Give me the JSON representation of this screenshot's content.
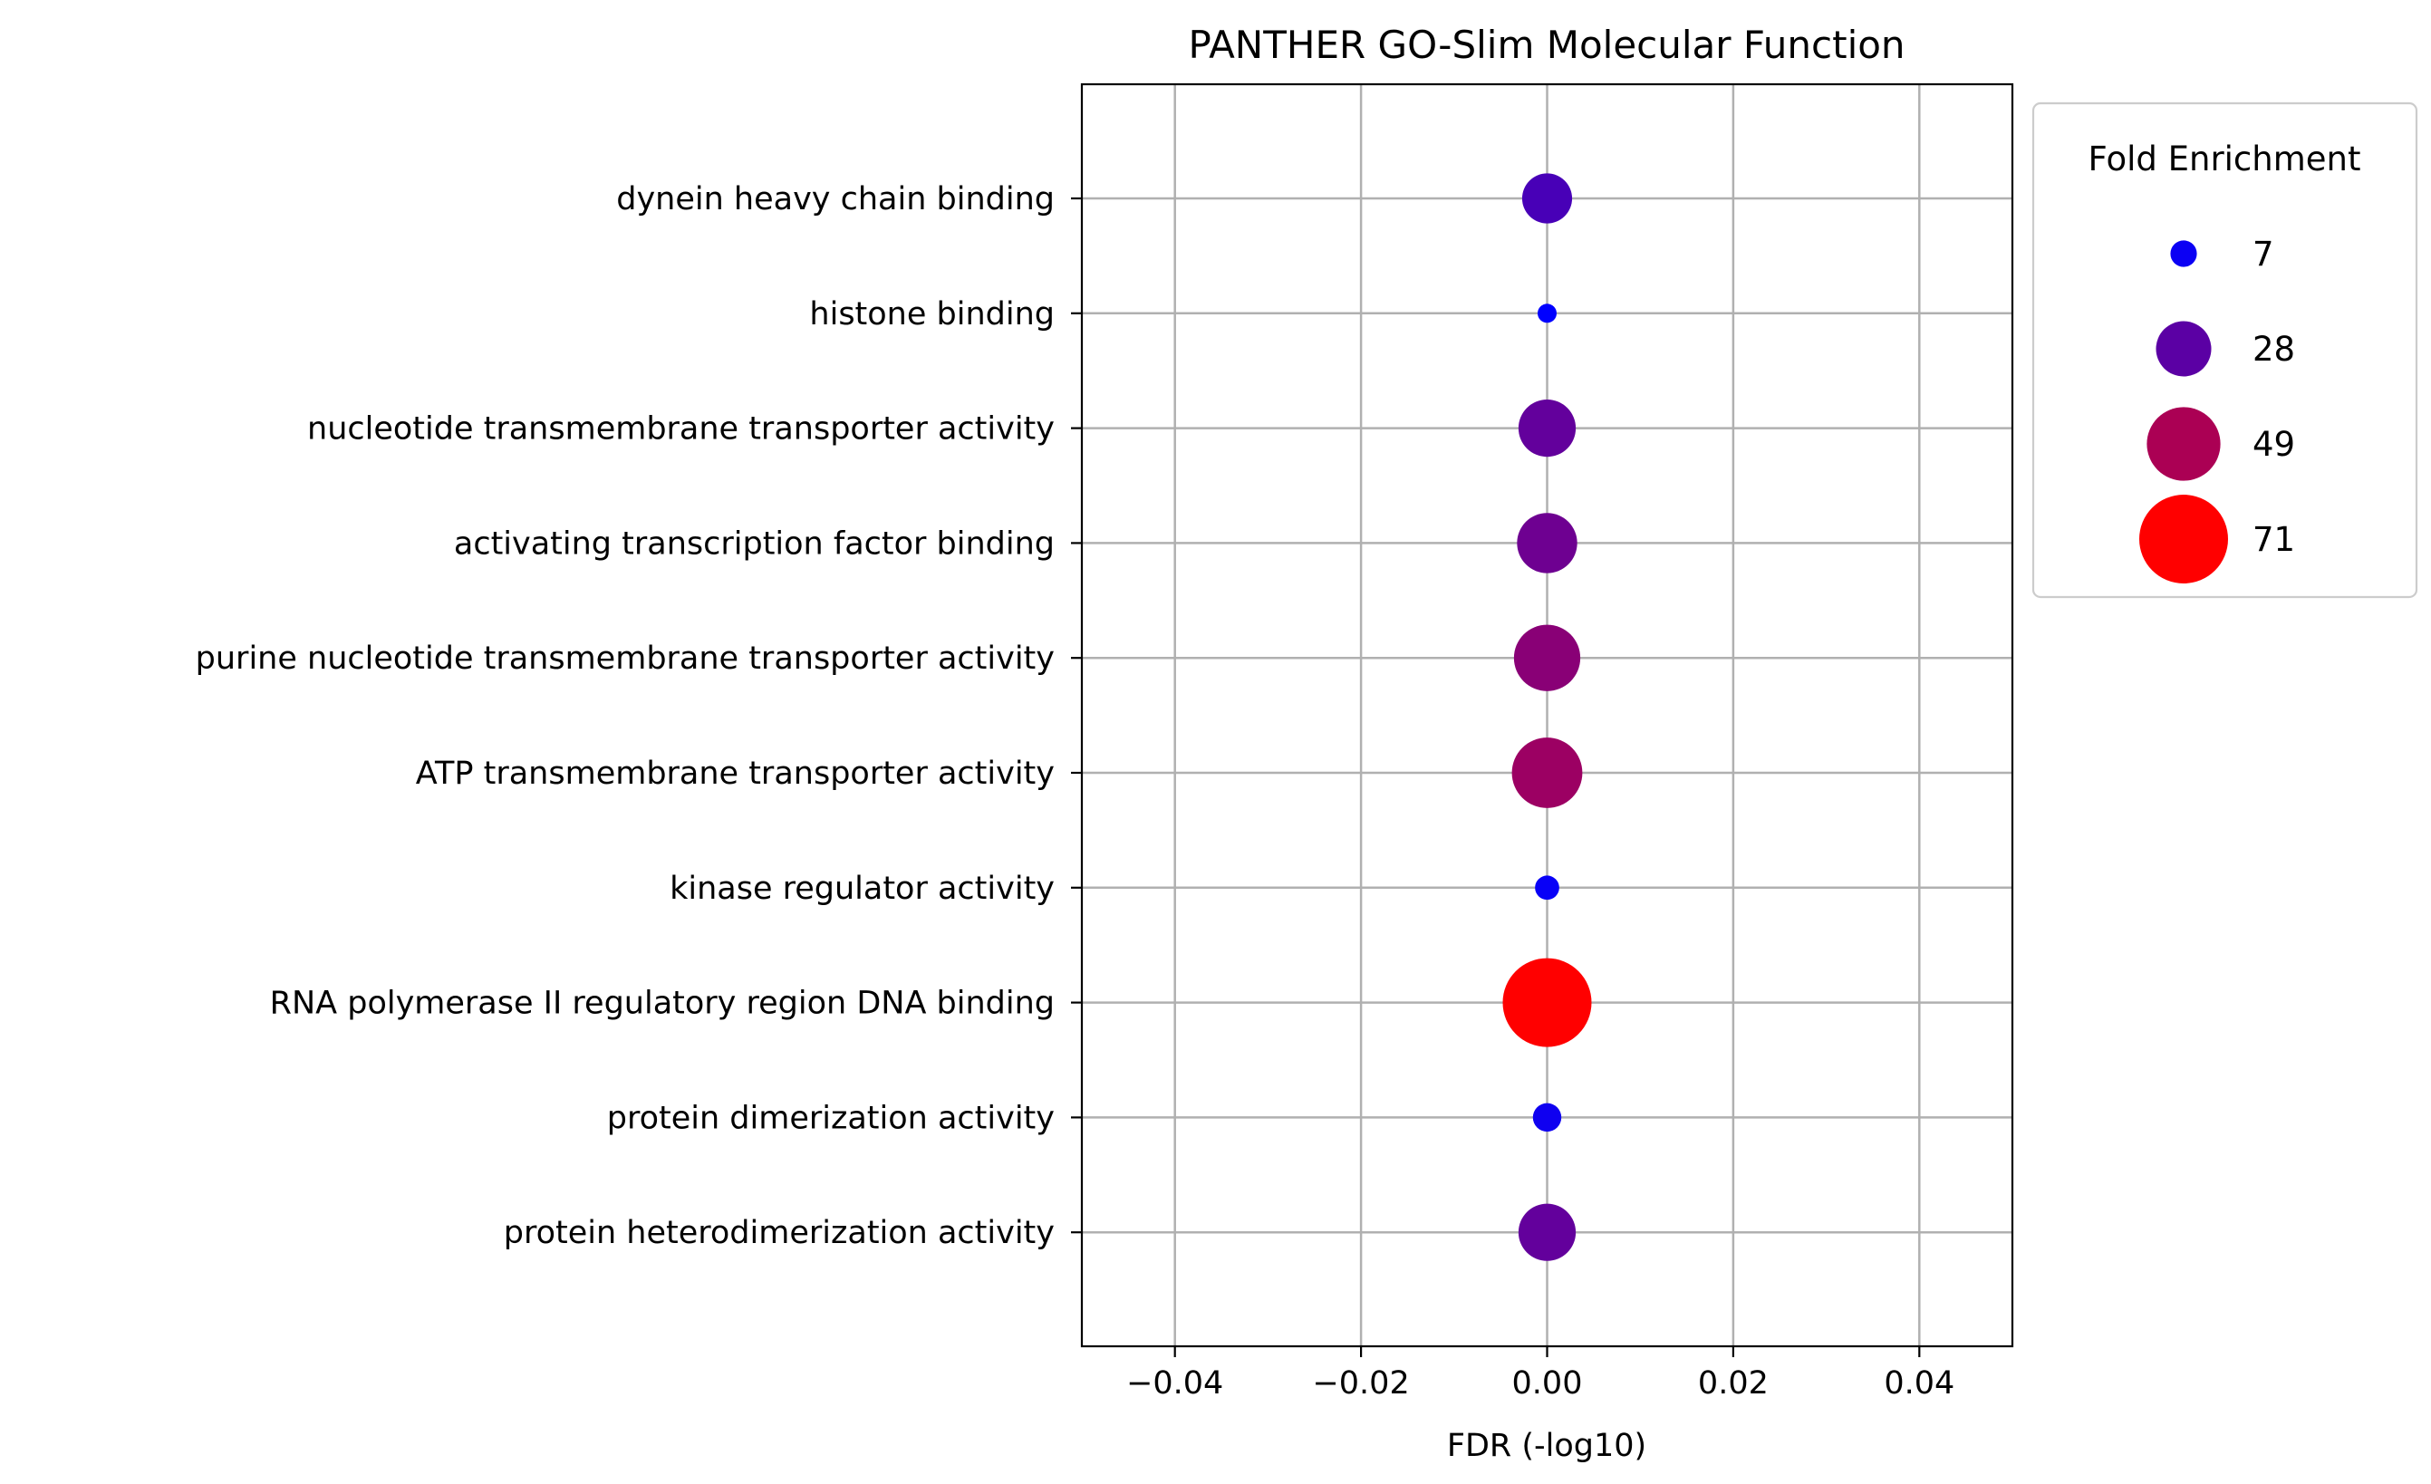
{
  "chart_data": {
    "type": "scatter",
    "title": "PANTHER GO-Slim Molecular Function",
    "xlabel": "FDR (-log10)",
    "ylabel": "",
    "xlim": [
      -0.05,
      0.05
    ],
    "xticks": [
      -0.04,
      -0.02,
      0.0,
      0.02,
      0.04
    ],
    "xtick_labels": [
      "−0.04",
      "−0.02",
      "0.00",
      "0.02",
      "0.04"
    ],
    "grid": true,
    "categories": [
      "dynein heavy chain binding",
      "histone binding",
      "nucleotide transmembrane transporter activity",
      "activating transcription factor binding",
      "purine nucleotide transmembrane transporter activity",
      "ATP transmembrane transporter activity",
      "kinase regulator activity",
      "RNA polymerase II regulatory region DNA binding",
      "protein dimerization activity",
      "protein heterodimerization activity"
    ],
    "points": [
      {
        "category": "dynein heavy chain binding",
        "x": 0.0,
        "fold_enrichment": 23
      },
      {
        "category": "histone binding",
        "x": 0.0,
        "fold_enrichment": 4
      },
      {
        "category": "nucleotide transmembrane transporter activity",
        "x": 0.0,
        "fold_enrichment": 30
      },
      {
        "category": "activating transcription factor binding",
        "x": 0.0,
        "fold_enrichment": 33
      },
      {
        "category": "purine nucleotide transmembrane transporter activity",
        "x": 0.0,
        "fold_enrichment": 40
      },
      {
        "category": "ATP transmembrane transporter activity",
        "x": 0.0,
        "fold_enrichment": 45
      },
      {
        "category": "kinase regulator activity",
        "x": 0.0,
        "fold_enrichment": 6
      },
      {
        "category": "RNA polymerase II regulatory region DNA binding",
        "x": 0.0,
        "fold_enrichment": 71
      },
      {
        "category": "protein dimerization activity",
        "x": 0.0,
        "fold_enrichment": 8
      },
      {
        "category": "protein heterodimerization activity",
        "x": 0.0,
        "fold_enrichment": 30
      }
    ],
    "size_range": [
      4,
      71
    ],
    "color_scale": [
      "#0000ff",
      "#ff0000"
    ],
    "legend": {
      "title": "Fold Enrichment",
      "placement": "outside-upper-right",
      "entries": [
        {
          "label": "7",
          "value": 7
        },
        {
          "label": "28",
          "value": 28
        },
        {
          "label": "49",
          "value": 49
        },
        {
          "label": "71",
          "value": 71
        }
      ]
    }
  }
}
